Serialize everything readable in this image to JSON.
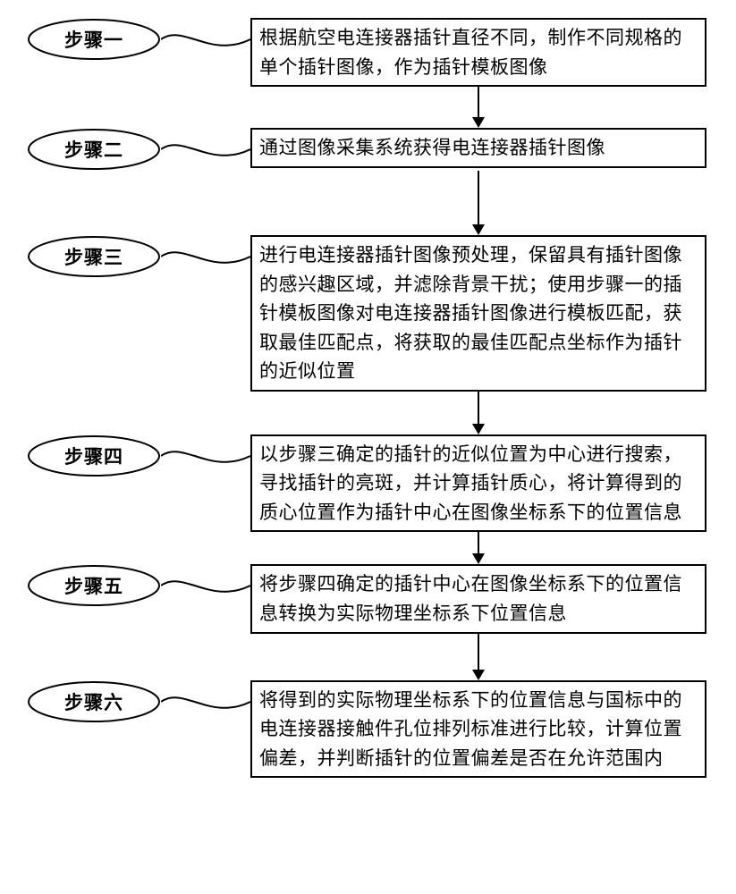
{
  "flowchart": {
    "type": "flowchart",
    "background_color": "#ffffff",
    "stroke_color": "#000000",
    "stroke_width": 2,
    "font_family": "SimSun",
    "font_size": 21,
    "line_height": 1.55,
    "step_label_shape": "ellipse",
    "content_shape": "rect",
    "arrow_style": "solid-triangle",
    "connector_style": "curved",
    "layout": "vertical-sequence",
    "steps": [
      {
        "label": "步骤一",
        "text": "根据航空电连接器插针直径不同，制作不同规格的单个插针图像，作为插针模板图像",
        "arrow_height": 46
      },
      {
        "label": "步骤二",
        "text": "通过图像采集系统获得电连接器插针图像",
        "arrow_height": 72
      },
      {
        "label": "步骤三",
        "text": "进行电连接器插针图像预处理，保留具有插针图像的感兴趣区域，并滤除背景干扰；使用步骤一的插针模板图像对电连接器插针图像进行模板匹配，获取最佳匹配点，将获取的最佳匹配点坐标作为插针的近似位置",
        "arrow_height": 48
      },
      {
        "label": "步骤四",
        "text": "以步骤三确定的插针的近似位置为中心进行搜索，寻找插针的亮斑，并计算插针质心，将计算得到的质心位置作为插针中心在图像坐标系下的位置信息",
        "arrow_height": 36
      },
      {
        "label": "步骤五",
        "text": "将步骤四确定的插针中心在图像坐标系下的位置信息转换为实际物理坐标系下位置信息",
        "arrow_height": 52
      },
      {
        "label": "步骤六",
        "text": "将得到的实际物理坐标系下的位置信息与国标中的电连接器接触件孔位排列标准进行比较，计算位置偏差，并判断插针的位置偏差是否在允许范围内",
        "arrow_height": 0
      }
    ]
  }
}
